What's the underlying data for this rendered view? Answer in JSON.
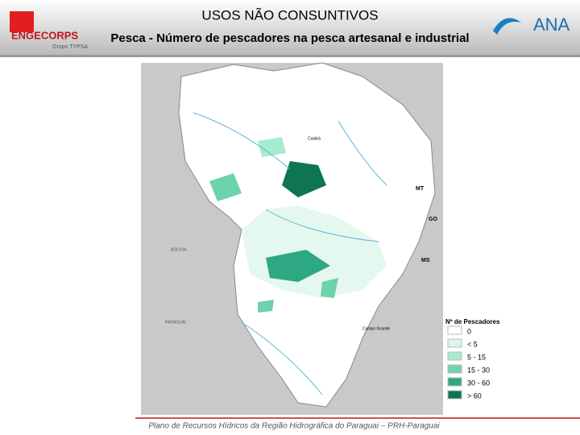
{
  "header": {
    "title": "USOS NÃO CONSUNTIVOS",
    "subtitle": "Pesca - Número de pescadores na pesca artesanal e industrial",
    "logo_left": "ENGECORPS",
    "logo_left_sub": "Grupo TYPSA",
    "logo_right": "ANA"
  },
  "map": {
    "labels": [
      "MT",
      "GO",
      "MS",
      "BOLÍVIA",
      "PARAGUAI",
      "Cuiabá",
      "Campo Grande"
    ]
  },
  "legend": {
    "title": "Nº de Pescadores",
    "items": [
      {
        "label": "0",
        "color": "#ffffff"
      },
      {
        "label": "< 5",
        "color": "#d9f6ec"
      },
      {
        "label": "5 - 15",
        "color": "#a6ebcf"
      },
      {
        "label": "15 - 30",
        "color": "#6cd3ab"
      },
      {
        "label": "30 - 60",
        "color": "#2ea882"
      },
      {
        "label": "> 60",
        "color": "#0d7553"
      }
    ]
  },
  "footer": "Plano de Recursos Hídricos da Região Hidrográfica do Paraguai – PRH-Paraguai"
}
